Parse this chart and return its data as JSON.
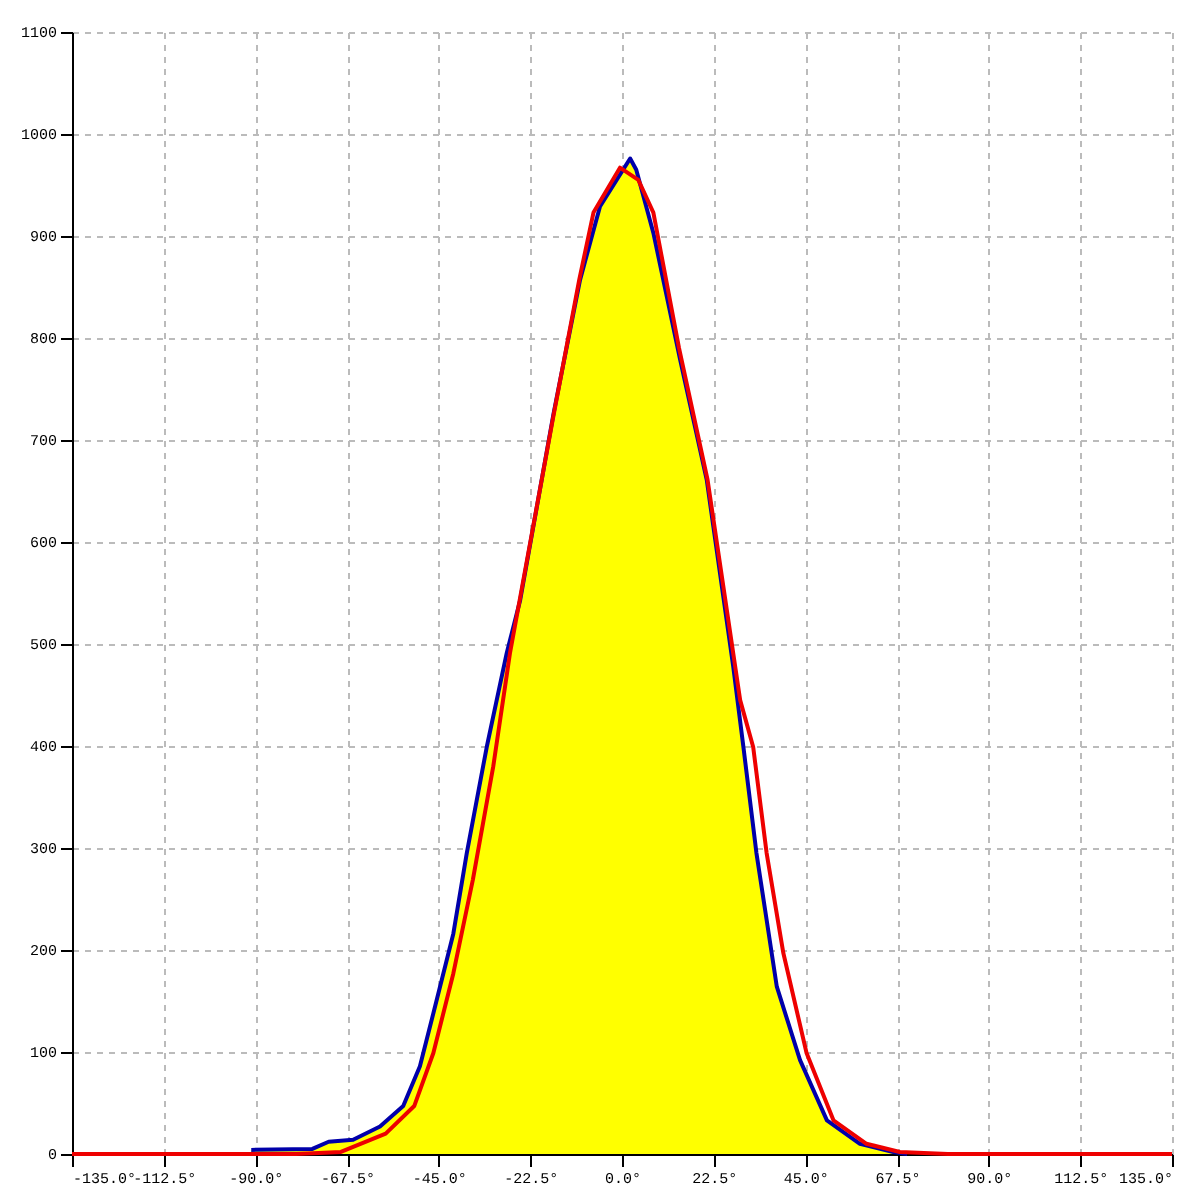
{
  "chart_data": {
    "type": "line",
    "xlim": [
      -135,
      135
    ],
    "ylim": [
      0,
      1100
    ],
    "xticks": [
      {
        "value": -135,
        "label": "-135.0°"
      },
      {
        "value": -112.5,
        "label": "-112.5°"
      },
      {
        "value": -90,
        "label": "-90.0°"
      },
      {
        "value": -67.5,
        "label": "-67.5°"
      },
      {
        "value": -45,
        "label": "-45.0°"
      },
      {
        "value": -22.5,
        "label": "-22.5°"
      },
      {
        "value": 0,
        "label": "0.0°"
      },
      {
        "value": 22.5,
        "label": "22.5°"
      },
      {
        "value": 45,
        "label": "45.0°"
      },
      {
        "value": 67.5,
        "label": "67.5°"
      },
      {
        "value": 90,
        "label": "90.0°"
      },
      {
        "value": 112.5,
        "label": "112.5°"
      },
      {
        "value": 135,
        "label": "135.0°"
      }
    ],
    "yticks": [
      0,
      100,
      200,
      300,
      400,
      500,
      600,
      700,
      800,
      900,
      1000,
      1100
    ],
    "grid": true,
    "line_style": "solid",
    "series": [
      {
        "type": "area",
        "color": "#ffff00",
        "x": [
          -91,
          -76,
          -72,
          -66,
          -59.4,
          -53.7,
          -49.6,
          -46.3,
          -41.4,
          -38.1,
          -33.2,
          -28.3,
          -25,
          -16.8,
          -10.3,
          -5.4,
          2,
          3.5,
          7.7,
          14.2,
          20.8,
          27.3,
          29.8,
          33,
          38,
          43.7,
          50.3,
          58.4,
          66.6,
          70
        ],
        "values": [
          4,
          5,
          12,
          14,
          27,
          47,
          86,
          138,
          216,
          295,
          399,
          491,
          543,
          726,
          857,
          929,
          976,
          965,
          903,
          780,
          661,
          478,
          399,
          295,
          164,
          92,
          33,
          10,
          2,
          0
        ]
      },
      {
        "color": "#ee0000",
        "x": [
          -135,
          -80,
          -69,
          -58,
          -51,
          -46.3,
          -41.4,
          -36.6,
          -31.6,
          -27.5,
          -17,
          -10.5,
          -7,
          -0.5,
          4,
          7.7,
          14,
          21,
          29,
          32.2,
          35.5,
          39.6,
          45.3,
          51.9,
          60,
          68.2,
          80,
          135
        ],
        "values": [
          0,
          0,
          2,
          20,
          47,
          99,
          177,
          269,
          380,
          491,
          720,
          857,
          923,
          967,
          955,
          923,
          790,
          661,
          445,
          399,
          295,
          197,
          99,
          33,
          10,
          2,
          0,
          0
        ]
      }
    ]
  }
}
